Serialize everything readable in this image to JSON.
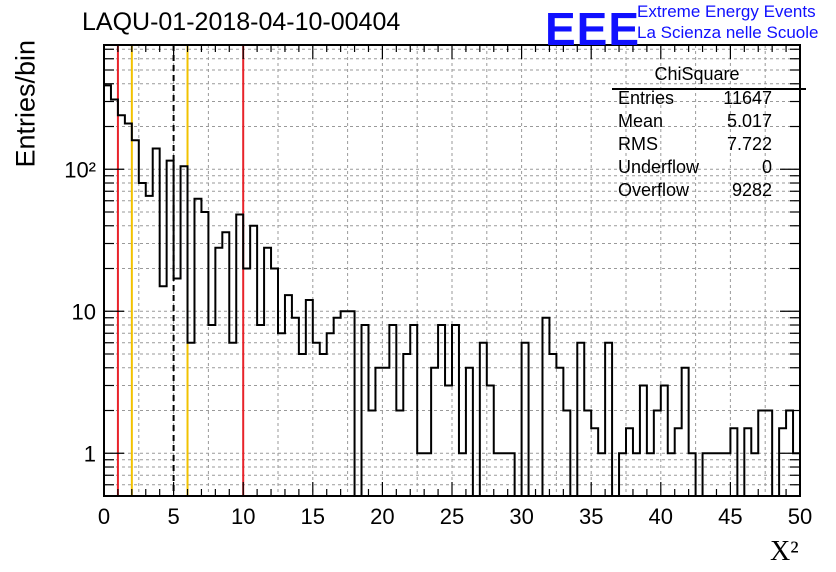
{
  "page": {
    "title": "LAQU-01-2018-04-10-00404",
    "logo": {
      "mark": "EEE",
      "line1": "Extreme Energy Events",
      "line2": "La Scienza nelle Scuole"
    }
  },
  "stats": {
    "title": "ChiSquare",
    "rows": [
      {
        "label": "Entries",
        "value": "11647"
      },
      {
        "label": "Mean",
        "value": "5.017"
      },
      {
        "label": "RMS",
        "value": "7.722"
      },
      {
        "label": "Underflow",
        "value": "0"
      },
      {
        "label": "Overflow",
        "value": "9282"
      }
    ]
  },
  "chart_data": {
    "type": "bar",
    "histogram": true,
    "xlabel": "X²",
    "ylabel": "Entries/bin",
    "xlim": [
      0,
      50
    ],
    "ylim": [
      0.5,
      750
    ],
    "ylog": true,
    "grid": true,
    "bin_width": 0.5,
    "x_ticks": [
      "0",
      "5",
      "10",
      "15",
      "20",
      "25",
      "30",
      "35",
      "40",
      "45",
      "50"
    ],
    "y_ticks": [
      {
        "value": 1,
        "label": "1"
      },
      {
        "value": 10,
        "label": "10"
      },
      {
        "value": 100,
        "label": "10²"
      }
    ],
    "values": [
      390,
      310,
      240,
      210,
      160,
      80,
      65,
      140,
      15,
      115,
      17,
      105,
      6,
      62,
      50,
      8,
      28,
      36,
      6,
      48,
      20,
      40,
      8,
      28,
      20,
      7,
      13,
      9,
      5,
      12,
      6,
      5,
      7,
      9,
      10,
      10,
      0.5,
      8,
      2,
      4,
      4,
      8,
      2,
      5,
      8,
      1,
      1,
      4,
      8,
      3,
      8,
      1,
      4,
      0.5,
      6,
      3,
      1,
      1,
      1,
      0.5,
      6,
      0.5,
      0.5,
      9,
      5,
      4,
      2,
      0.5,
      6,
      2,
      1.5,
      1,
      6,
      0.5,
      1,
      1.5,
      1,
      3,
      1,
      2,
      3,
      1,
      1.5,
      4,
      1,
      0.5,
      1,
      1,
      1,
      1,
      1.5,
      0.5,
      1.5,
      1,
      2,
      2,
      0.5,
      1.5,
      2,
      1
    ],
    "vlines": [
      {
        "x": 1,
        "color": "#e8232a",
        "style": "solid"
      },
      {
        "x": 2,
        "color": "#f2c200",
        "style": "solid"
      },
      {
        "x": 5,
        "color": "#000000",
        "style": "dashed"
      },
      {
        "x": 6,
        "color": "#f2c200",
        "style": "solid"
      },
      {
        "x": 10,
        "color": "#e8232a",
        "style": "solid"
      }
    ],
    "colors": {
      "histogram": "#000000",
      "grid": "#9a9a9a"
    }
  }
}
